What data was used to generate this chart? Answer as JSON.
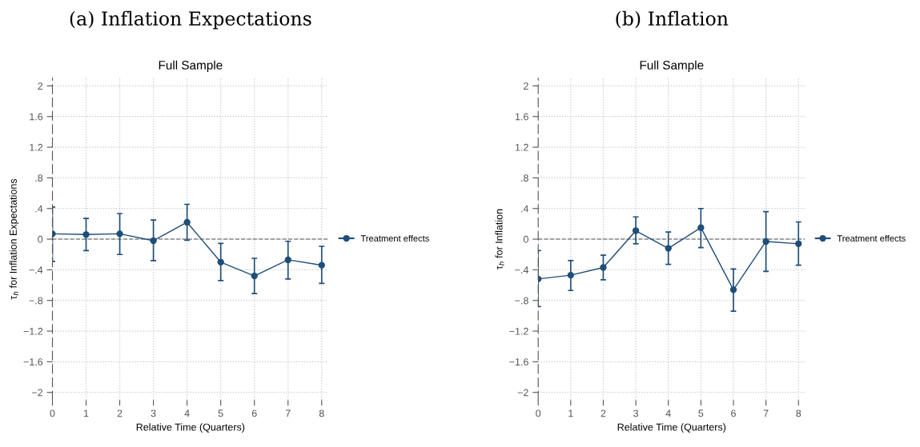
{
  "chart_data": [
    {
      "type": "line",
      "title": "(a) Inflation Expectations",
      "subtitle": "Full Sample",
      "xlabel": "Relative Time (Quarters)",
      "ylabel": "τ$_{h}$ for Inflation Expectations",
      "x": [
        0,
        1,
        2,
        3,
        4,
        5,
        6,
        7,
        8
      ],
      "series": [
        {
          "name": "Treatment effects",
          "color": "#1f4e79",
          "values": [
            0.07,
            0.06,
            0.07,
            -0.02,
            0.22,
            -0.3,
            -0.48,
            -0.27,
            -0.34
          ],
          "errors": [
            [
              -0.29,
              0.42
            ],
            [
              -0.15,
              0.27
            ],
            [
              -0.2,
              0.335
            ],
            [
              -0.28,
              0.25
            ],
            [
              -0.014,
              0.455
            ],
            [
              -0.54,
              -0.055
            ],
            [
              -0.71,
              -0.25
            ],
            [
              -0.52,
              -0.028
            ],
            [
              -0.577,
              -0.093
            ]
          ]
        }
      ],
      "xlim": [
        0,
        8.2
      ],
      "xticks": [
        0,
        1,
        2,
        3,
        4,
        5,
        6,
        7,
        8
      ],
      "ylim": [
        -2.1,
        2.1
      ],
      "yticks": [
        {
          "value": -2,
          "label": "−2"
        },
        {
          "value": -1.6,
          "label": "−1.6"
        },
        {
          "value": -1.2,
          "label": "−1.2"
        },
        {
          "value": -0.8,
          "label": "−.8"
        },
        {
          "value": -0.4,
          "label": "−.4"
        },
        0,
        {
          "value": 0.4,
          "label": ".4"
        },
        {
          "value": 0.8,
          "label": ".8"
        },
        {
          "value": 1.2,
          "label": "1.2"
        },
        {
          "value": 1.6,
          "label": "1.6"
        },
        2
      ],
      "ref_lines": [
        {
          "axis": "y",
          "value": 0,
          "color": "#888888",
          "line_style": "dashed"
        }
      ],
      "grid": true,
      "legend": "right",
      "marker": "circle",
      "line_style": "solid"
    },
    {
      "type": "line",
      "title": "(b) Inflation",
      "subtitle": "Full Sample",
      "xlabel": "Relative Time (Quarters)",
      "ylabel": "τ$_{h}$ for Inflation",
      "x": [
        0,
        1,
        2,
        3,
        4,
        5,
        6,
        7,
        8
      ],
      "series": [
        {
          "name": "Treatment effects",
          "color": "#1f4e79",
          "values": [
            -0.52,
            -0.47,
            -0.37,
            0.11,
            -0.12,
            0.15,
            -0.66,
            -0.03,
            -0.06
          ],
          "errors": [
            [
              -0.88,
              -0.15
            ],
            [
              -0.67,
              -0.28
            ],
            [
              -0.53,
              -0.21
            ],
            [
              -0.06,
              0.29
            ],
            [
              -0.33,
              0.093
            ],
            [
              -0.11,
              0.4
            ],
            [
              -0.94,
              -0.39
            ],
            [
              -0.42,
              0.36
            ],
            [
              -0.34,
              0.225
            ]
          ]
        }
      ],
      "xlim": [
        0,
        8.2
      ],
      "xticks": [
        0,
        1,
        2,
        3,
        4,
        5,
        6,
        7,
        8
      ],
      "ylim": [
        -2.1,
        2.1
      ],
      "yticks": [
        {
          "value": -2,
          "label": "−2"
        },
        {
          "value": -1.6,
          "label": "−1.6"
        },
        {
          "value": -1.2,
          "label": "−1.2"
        },
        {
          "value": -0.8,
          "label": "−.8"
        },
        {
          "value": -0.4,
          "label": "−.4"
        },
        0,
        {
          "value": 0.4,
          "label": ".4"
        },
        {
          "value": 0.8,
          "label": ".8"
        },
        {
          "value": 1.2,
          "label": "1.2"
        },
        {
          "value": 1.6,
          "label": "1.6"
        },
        2
      ],
      "ref_lines": [
        {
          "axis": "y",
          "value": 0,
          "color": "#888888",
          "line_style": "dashed"
        }
      ],
      "grid": true,
      "legend": "right",
      "marker": "circle",
      "line_style": "solid"
    }
  ]
}
